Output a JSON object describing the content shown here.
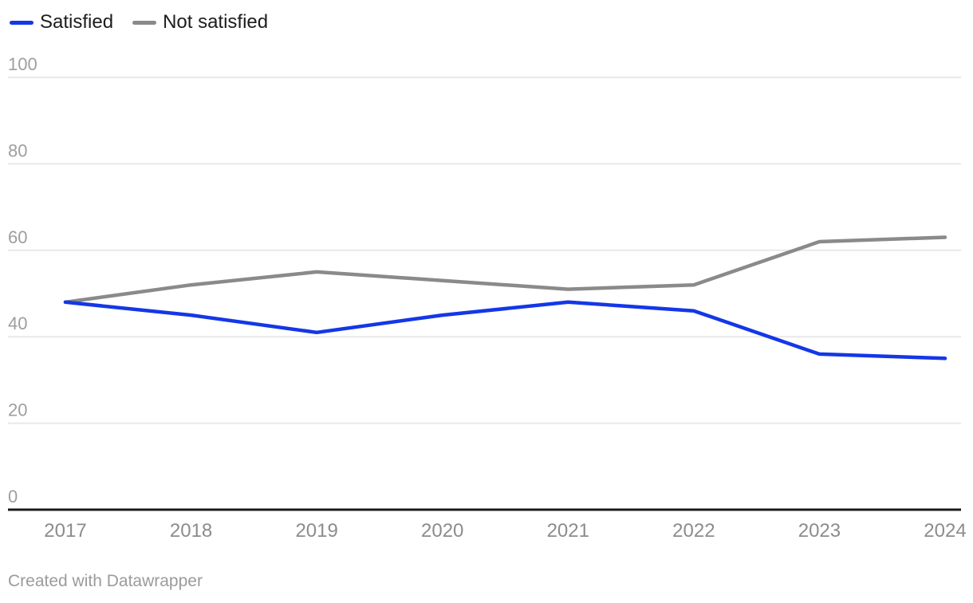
{
  "chart_data": {
    "type": "line",
    "title": "",
    "categories": [
      "2017",
      "2018",
      "2019",
      "2020",
      "2021",
      "2022",
      "2023",
      "2024"
    ],
    "series": [
      {
        "name": "Satisfied",
        "color": "#1437e6",
        "values": [
          48,
          45,
          41,
          45,
          48,
          46,
          36,
          35
        ]
      },
      {
        "name": "Not satisfied",
        "color": "#8a8a8a",
        "values": [
          48,
          52,
          55,
          53,
          51,
          52,
          62,
          63
        ]
      }
    ],
    "xlabel": "",
    "ylabel": "",
    "ylim": [
      0,
      100
    ],
    "yticks": [
      0,
      20,
      40,
      60,
      80,
      100
    ],
    "grid": true,
    "legend_position": "top-left"
  },
  "footer": {
    "attribution": "Created with Datawrapper"
  },
  "colors": {
    "background": "#ffffff",
    "gridline": "#e9e9e9",
    "axis_line": "#1a1a1a",
    "ytick_label": "#9e9e9e",
    "xtick_label": "#8c8c8c",
    "legend_text": "#1d1d1d",
    "attribution_text": "#9b9b9b"
  }
}
